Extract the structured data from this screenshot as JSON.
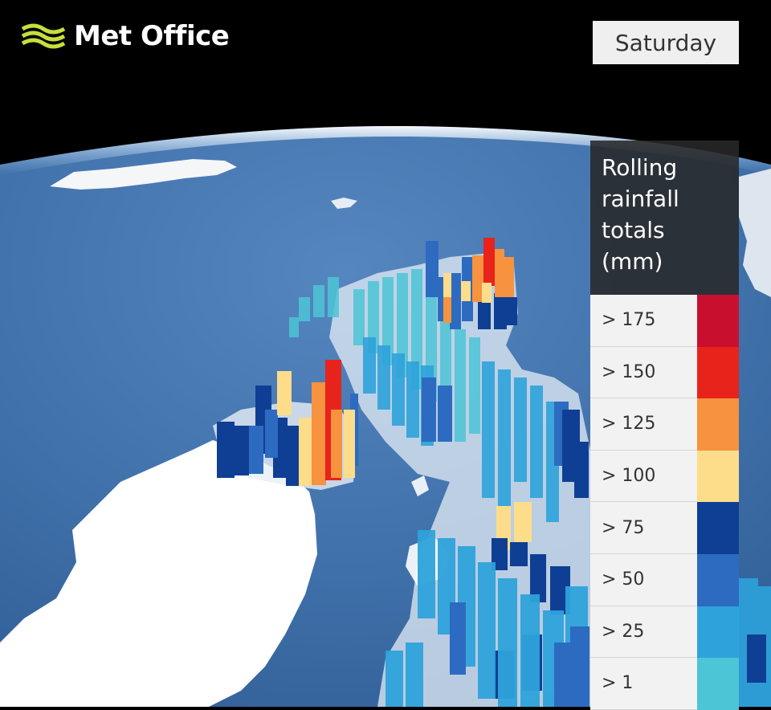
{
  "brand": {
    "name": "Met Office"
  },
  "day": "Saturday",
  "legend": {
    "title_lines": [
      "Rolling",
      "rainfall",
      "totals",
      "(mm)"
    ],
    "items": [
      {
        "label": "> 175",
        "color": "#c8102e"
      },
      {
        "label": "> 150",
        "color": "#e8231c"
      },
      {
        "label": "> 125",
        "color": "#f7923e"
      },
      {
        "label": "> 100",
        "color": "#fddd8a"
      },
      {
        "label": "> 75",
        "color": "#0f3f94"
      },
      {
        "label": "> 50",
        "color": "#2d6bc1"
      },
      {
        "label": "> 25",
        "color": "#2ea3db"
      },
      {
        "label": "> 1",
        "color": "#4cc5d6"
      }
    ]
  },
  "colors": {
    "space": "#000000",
    "ocean": "#3f6fa8",
    "land": "#ffffff",
    "logo_green": "#c8de3c"
  }
}
